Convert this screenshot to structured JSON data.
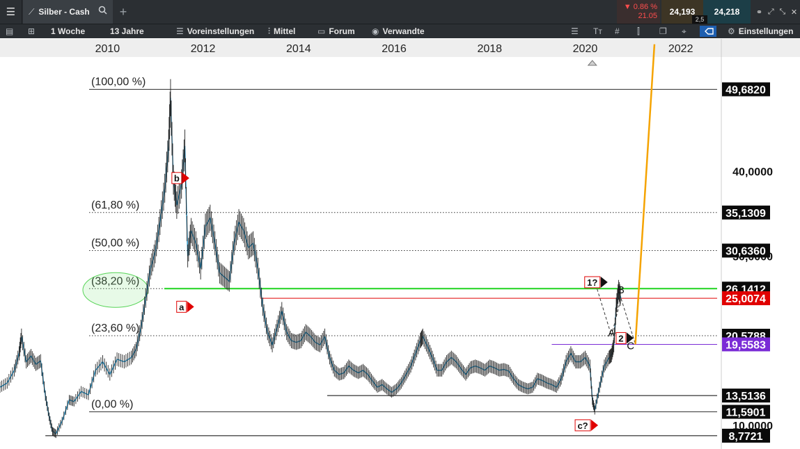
{
  "header": {
    "menu_icon": "hamburger-icon",
    "tab_icon": "line-chart-icon",
    "tab_title": "Silber - Cash",
    "search_icon": "search-icon",
    "add_tab_icon": "plus-icon",
    "change_pct": "▼ 0.86 %",
    "change_abs": "21.05",
    "bid": "24,193",
    "spread": "2,5",
    "ask": "24,218",
    "window_icons": [
      "link-icon",
      "expand-icon",
      "collapse-icon",
      "close-icon"
    ]
  },
  "toolbar": {
    "timeframe": "1 Woche",
    "range": "13 Jahre",
    "presets": "Voreinstellungen",
    "indicator": "Mittel",
    "forum": "Forum",
    "related": "Verwandte",
    "settings": "Einstellungen"
  },
  "chart_data": {
    "type": "line",
    "x_axis_labels": [
      "2010",
      "2012",
      "2014",
      "2016",
      "2018",
      "2020",
      "2022"
    ],
    "y_range": [
      7.2,
      53.5
    ],
    "x_range": [
      2007.75,
      2022.85
    ],
    "price_tags": [
      {
        "label": "49,6820",
        "value": 49.682,
        "style": "black"
      },
      {
        "label": "40,0000",
        "value": 40.0,
        "style": "axis"
      },
      {
        "label": "35,1309",
        "value": 35.1309,
        "style": "black"
      },
      {
        "label": "30,0000",
        "value": 30.0,
        "style": "axis"
      },
      {
        "label": "30,6360",
        "value": 30.636,
        "style": "black"
      },
      {
        "label": "26,1412",
        "value": 26.1412,
        "style": "black"
      },
      {
        "label": "25,0074",
        "value": 25.0074,
        "style": "red"
      },
      {
        "label": "20,5788",
        "value": 20.5788,
        "style": "black"
      },
      {
        "label": "19,5583",
        "value": 19.5583,
        "style": "purple"
      },
      {
        "label": "13,5136",
        "value": 13.5136,
        "style": "black"
      },
      {
        "label": "11,5901",
        "value": 11.5901,
        "style": "black"
      },
      {
        "label": "10,0000",
        "value": 10.0,
        "style": "axis"
      },
      {
        "label": "8,7721",
        "value": 8.7721,
        "style": "black"
      }
    ],
    "fib_levels": [
      {
        "label": "(100,00 %)",
        "value": 49.682
      },
      {
        "label": "(61,80 %)",
        "value": 35.1309
      },
      {
        "label": "(50,00 %)",
        "value": 30.636
      },
      {
        "label": "(38,20 %)",
        "value": 26.1412
      },
      {
        "label": "(23,60 %)",
        "value": 20.5788
      },
      {
        "label": "(0,00 %)",
        "value": 11.5901
      }
    ],
    "horizontal_lines": [
      {
        "value": 25.0074,
        "from": 2013.2,
        "color": "#e00000"
      },
      {
        "value": 19.5583,
        "from": 2019.3,
        "color": "#7a2bd6"
      },
      {
        "value": 13.5136,
        "from": 2014.6,
        "color": "#000000"
      },
      {
        "value": 8.7721,
        "from": 2008.7,
        "color": "#000000"
      }
    ],
    "wave_labels": [
      {
        "text": "b",
        "x": 2011.45,
        "y": 39.2
      },
      {
        "text": "a",
        "x": 2011.55,
        "y": 24.0
      },
      {
        "text": "c?",
        "x": 2019.95,
        "y": 10.0
      },
      {
        "text": "1?",
        "x": 2020.15,
        "y": 26.9
      },
      {
        "text": "2",
        "x": 2020.75,
        "y": 20.3
      }
    ],
    "letters": [
      {
        "text": "A",
        "x": 2020.55,
        "y": 20.5
      },
      {
        "text": "B",
        "x": 2020.75,
        "y": 25.6
      },
      {
        "text": "C",
        "x": 2020.95,
        "y": 19.0
      }
    ],
    "projection": [
      [
        2020.25,
        26.1
      ],
      [
        2020.55,
        20.6
      ],
      [
        2020.75,
        25.0
      ],
      [
        2021.05,
        19.6
      ]
    ],
    "target_line": [
      [
        2021.05,
        19.56
      ],
      [
        2021.45,
        55
      ]
    ],
    "series": [
      {
        "name": "",
        "color": "#1b8fc7",
        "points": [
          [
            2007.75,
            14.5
          ],
          [
            2007.9,
            15.0
          ],
          [
            2008.05,
            16.5
          ],
          [
            2008.15,
            18.5
          ],
          [
            2008.2,
            20.5
          ],
          [
            2008.3,
            17.5
          ],
          [
            2008.4,
            18.2
          ],
          [
            2008.5,
            17.2
          ],
          [
            2008.6,
            17.6
          ],
          [
            2008.7,
            13.5
          ],
          [
            2008.78,
            11.0
          ],
          [
            2008.85,
            9.3
          ],
          [
            2008.92,
            9.0
          ],
          [
            2009.05,
            10.5
          ],
          [
            2009.2,
            13.0
          ],
          [
            2009.3,
            12.8
          ],
          [
            2009.45,
            14.0
          ],
          [
            2009.6,
            13.6
          ],
          [
            2009.75,
            16.5
          ],
          [
            2009.9,
            17.5
          ],
          [
            2010.05,
            16.0
          ],
          [
            2010.2,
            17.8
          ],
          [
            2010.35,
            17.5
          ],
          [
            2010.5,
            18.0
          ],
          [
            2010.6,
            19.0
          ],
          [
            2010.7,
            21.5
          ],
          [
            2010.8,
            25.0
          ],
          [
            2010.9,
            28.5
          ],
          [
            2011.0,
            30.5
          ],
          [
            2011.1,
            34.0
          ],
          [
            2011.2,
            38.0
          ],
          [
            2011.28,
            43.0
          ],
          [
            2011.32,
            48.7
          ],
          [
            2011.38,
            39.0
          ],
          [
            2011.45,
            36.0
          ],
          [
            2011.55,
            38.5
          ],
          [
            2011.62,
            43.0
          ],
          [
            2011.68,
            30.0
          ],
          [
            2011.75,
            33.0
          ],
          [
            2011.85,
            31.5
          ],
          [
            2011.95,
            28.5
          ],
          [
            2012.05,
            33.5
          ],
          [
            2012.15,
            34.5
          ],
          [
            2012.25,
            31.5
          ],
          [
            2012.35,
            28.0
          ],
          [
            2012.45,
            27.5
          ],
          [
            2012.55,
            27.0
          ],
          [
            2012.65,
            31.5
          ],
          [
            2012.75,
            34.0
          ],
          [
            2012.85,
            33.0
          ],
          [
            2012.95,
            31.0
          ],
          [
            2013.05,
            31.5
          ],
          [
            2013.15,
            28.5
          ],
          [
            2013.25,
            24.0
          ],
          [
            2013.35,
            21.0
          ],
          [
            2013.45,
            19.5
          ],
          [
            2013.55,
            21.5
          ],
          [
            2013.65,
            23.5
          ],
          [
            2013.75,
            21.0
          ],
          [
            2013.85,
            20.0
          ],
          [
            2013.95,
            19.8
          ],
          [
            2014.05,
            20.0
          ],
          [
            2014.15,
            21.0
          ],
          [
            2014.25,
            20.5
          ],
          [
            2014.35,
            19.8
          ],
          [
            2014.45,
            19.5
          ],
          [
            2014.55,
            20.5
          ],
          [
            2014.65,
            18.0
          ],
          [
            2014.75,
            16.5
          ],
          [
            2014.85,
            16.0
          ],
          [
            2014.95,
            16.2
          ],
          [
            2015.05,
            17.0
          ],
          [
            2015.15,
            16.5
          ],
          [
            2015.25,
            16.2
          ],
          [
            2015.35,
            16.5
          ],
          [
            2015.45,
            16.0
          ],
          [
            2015.55,
            15.2
          ],
          [
            2015.65,
            14.5
          ],
          [
            2015.75,
            14.8
          ],
          [
            2015.85,
            14.3
          ],
          [
            2015.95,
            13.9
          ],
          [
            2016.05,
            14.3
          ],
          [
            2016.15,
            15.0
          ],
          [
            2016.25,
            16.0
          ],
          [
            2016.35,
            17.0
          ],
          [
            2016.45,
            18.5
          ],
          [
            2016.55,
            20.0
          ],
          [
            2016.6,
            20.5
          ],
          [
            2016.7,
            19.3
          ],
          [
            2016.8,
            18.0
          ],
          [
            2016.9,
            16.5
          ],
          [
            2017.0,
            16.5
          ],
          [
            2017.1,
            17.5
          ],
          [
            2017.2,
            18.0
          ],
          [
            2017.3,
            17.5
          ],
          [
            2017.4,
            16.7
          ],
          [
            2017.5,
            16.0
          ],
          [
            2017.6,
            16.8
          ],
          [
            2017.7,
            17.0
          ],
          [
            2017.8,
            16.8
          ],
          [
            2017.9,
            16.5
          ],
          [
            2018.0,
            17.0
          ],
          [
            2018.1,
            16.8
          ],
          [
            2018.2,
            16.5
          ],
          [
            2018.3,
            16.6
          ],
          [
            2018.4,
            16.4
          ],
          [
            2018.5,
            15.5
          ],
          [
            2018.6,
            14.8
          ],
          [
            2018.7,
            14.5
          ],
          [
            2018.8,
            14.3
          ],
          [
            2018.9,
            14.5
          ],
          [
            2019.0,
            15.5
          ],
          [
            2019.1,
            15.3
          ],
          [
            2019.2,
            15.0
          ],
          [
            2019.3,
            14.8
          ],
          [
            2019.4,
            14.5
          ],
          [
            2019.5,
            15.5
          ],
          [
            2019.6,
            17.5
          ],
          [
            2019.7,
            18.5
          ],
          [
            2019.8,
            17.5
          ],
          [
            2019.9,
            17.5
          ],
          [
            2020.0,
            18.0
          ],
          [
            2020.1,
            17.0
          ],
          [
            2020.15,
            13.0
          ],
          [
            2020.2,
            11.8
          ],
          [
            2020.3,
            14.5
          ],
          [
            2020.4,
            17.0
          ],
          [
            2020.5,
            18.0
          ],
          [
            2020.55,
            18.3
          ],
          [
            2020.6,
            19.5
          ],
          [
            2020.65,
            24.0
          ],
          [
            2020.7,
            26.0
          ],
          [
            2020.75,
            25.0
          ]
        ]
      }
    ]
  }
}
